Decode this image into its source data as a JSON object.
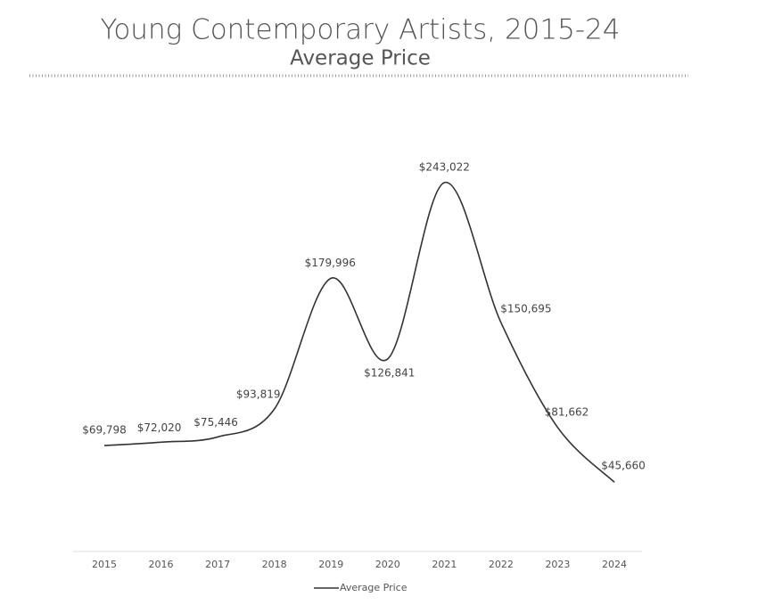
{
  "chart_data": {
    "type": "line",
    "title": "Young Contemporary Artists, 2015-24",
    "subtitle": "Average Price",
    "categories": [
      "2015",
      "2016",
      "2017",
      "2018",
      "2019",
      "2020",
      "2021",
      "2022",
      "2023",
      "2024"
    ],
    "series": [
      {
        "name": "Average Price",
        "color": "#333333",
        "values": [
          69798,
          72020,
          75446,
          93819,
          179996,
          126841,
          243022,
          150695,
          81662,
          45660
        ],
        "value_labels": [
          "$69,798",
          "$72,020",
          "$75,446",
          "$93,819",
          "$179,996",
          "$126,841",
          "$243,022",
          "$150,695",
          "$81,662",
          "$45,660"
        ]
      }
    ],
    "ylim": [
      0,
      250000
    ],
    "legend": "bottom"
  }
}
